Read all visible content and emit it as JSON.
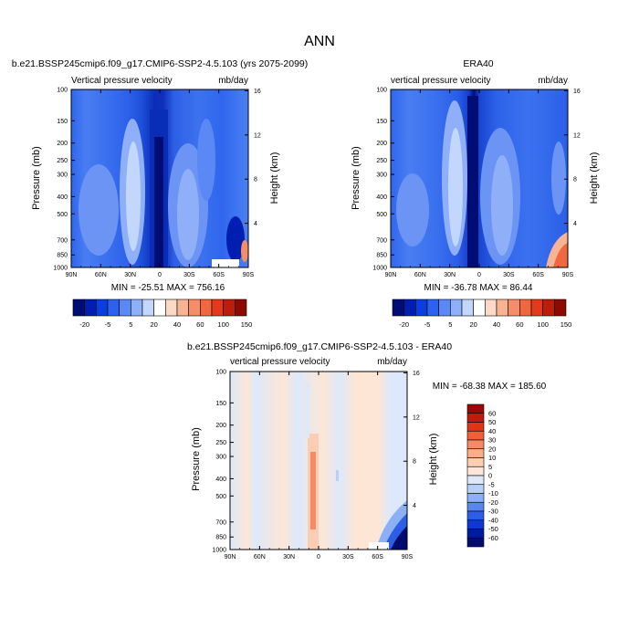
{
  "figure_title": "ANN",
  "chart_data": [
    {
      "type": "heatmap",
      "title": "b.e21.BSSP245cmip6.f09_g17.CMIP6-SSP2-4.5.103 (yrs 2075-2099)",
      "left_label": "Vertical pressure velocity",
      "right_label": "mb/day",
      "ylabel": "Pressure (mb)",
      "y2label": "Height (km)",
      "x_ticks": [
        "90N",
        "60N",
        "30N",
        "0",
        "30S",
        "60S",
        "90S"
      ],
      "y_ticks": [
        "100",
        "150",
        "200",
        "250",
        "300",
        "400",
        "500",
        "700",
        "850",
        "1000"
      ],
      "y2_ticks": [
        "16",
        "12",
        "8",
        "4"
      ],
      "stats": "MIN = -25.51   MAX = 756.16",
      "colorbar": {
        "orientation": "horizontal",
        "labels": [
          "-20",
          "-5",
          "5",
          "20",
          "40",
          "60",
          "100",
          "150"
        ],
        "colors": [
          "#000d75",
          "#001fb0",
          "#0a3fdd",
          "#2d62ee",
          "#5a88f5",
          "#8fb0f8",
          "#c3d6fb",
          "#ffffff",
          "#fbd9c6",
          "#f7b394",
          "#f48d68",
          "#ef6840",
          "#e23b1b",
          "#bd1d0b",
          "#8c0a00"
        ]
      }
    },
    {
      "type": "heatmap",
      "title": "ERA40",
      "left_label": "vertical pressure velocity",
      "right_label": "mb/day",
      "ylabel": "Pressure (mb)",
      "y2label": "Height (km)",
      "x_ticks": [
        "90N",
        "60N",
        "30N",
        "0",
        "30S",
        "60S",
        "90S"
      ],
      "y_ticks": [
        "100",
        "150",
        "200",
        "250",
        "300",
        "400",
        "500",
        "700",
        "850",
        "1000"
      ],
      "y2_ticks": [
        "16",
        "12",
        "8",
        "4"
      ],
      "stats": "MIN = -36.78   MAX =  86.44",
      "colorbar": {
        "orientation": "horizontal",
        "labels": [
          "-20",
          "-5",
          "5",
          "20",
          "40",
          "60",
          "100",
          "150"
        ],
        "colors": [
          "#000d75",
          "#001fb0",
          "#0a3fdd",
          "#2d62ee",
          "#5a88f5",
          "#8fb0f8",
          "#c3d6fb",
          "#ffffff",
          "#fbd9c6",
          "#f7b394",
          "#f48d68",
          "#ef6840",
          "#e23b1b",
          "#bd1d0b",
          "#8c0a00"
        ]
      }
    },
    {
      "type": "heatmap",
      "title": "b.e21.BSSP245cmip6.f09_g17.CMIP6-SSP2-4.5.103 - ERA40",
      "left_label": "vertical pressure velocity",
      "right_label": "mb/day",
      "ylabel": "Pressure (mb)",
      "y2label": "Height (km)",
      "x_ticks": [
        "90N",
        "60N",
        "30N",
        "0",
        "30S",
        "60S",
        "90S"
      ],
      "y_ticks": [
        "100",
        "150",
        "200",
        "250",
        "300",
        "400",
        "500",
        "700",
        "850",
        "1000"
      ],
      "y2_ticks": [
        "16",
        "12",
        "8",
        "4"
      ],
      "stats": "MIN = -68.38  MAX = 185.60",
      "colorbar": {
        "orientation": "vertical",
        "labels": [
          "60",
          "50",
          "40",
          "30",
          "20",
          "10",
          "5",
          "0",
          "-5",
          "-10",
          "-20",
          "-30",
          "-40",
          "-50",
          "-60"
        ],
        "colors": [
          "#9b0a00",
          "#c21b0b",
          "#e03518",
          "#ef5f3a",
          "#f58a64",
          "#f8ae8e",
          "#fbcdb2",
          "#fde6d6",
          "#dde9fb",
          "#b9cff8",
          "#8daff5",
          "#5a86ef",
          "#2d5fe6",
          "#0b3bc9",
          "#001c9c",
          "#000d6e"
        ]
      }
    }
  ]
}
